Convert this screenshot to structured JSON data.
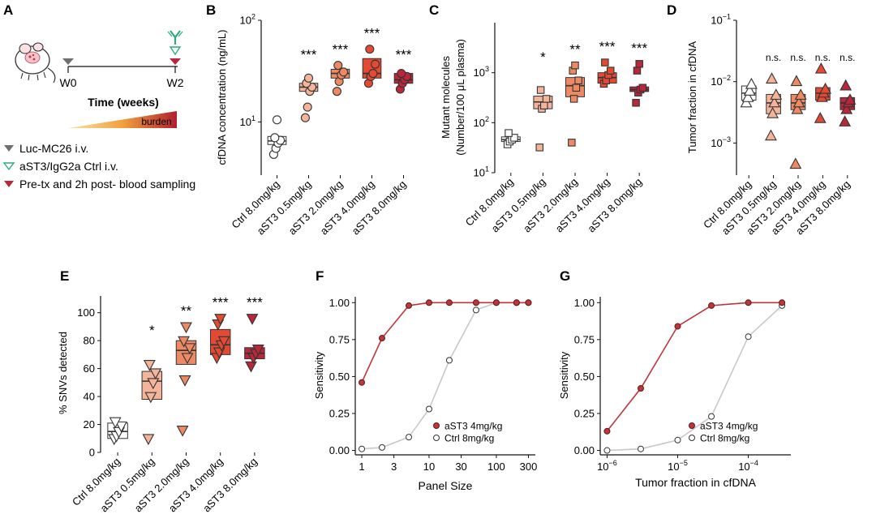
{
  "panel_labels": [
    "A",
    "B",
    "C",
    "D",
    "E",
    "F",
    "G"
  ],
  "palette": {
    "Ctrl 8.0mg/kg": "#ffffff",
    "aST3 0.5mg/kg": "#f4b49a",
    "aST3 2.0mg/kg": "#ee8a63",
    "aST3 4.0mg/kg": "#e24a33",
    "aST3 8.0mg/kg": "#b8273a",
    "aST3 4mg/kg": "#c0353a",
    "Ctrl 8mg/kg": "#c8c8c8"
  },
  "schematic": {
    "w0": "W0",
    "w2": "W2",
    "time_label": "Time (weeks)",
    "burden": "burden",
    "legend": [
      {
        "symbol": "gray-filled-triangle-down",
        "text": "Luc-MC26 i.v."
      },
      {
        "symbol": "green-open-triangle-down",
        "text": "aST3/IgG2a Ctrl i.v."
      },
      {
        "symbol": "red-filled-triangle-down",
        "text": "Pre-tx and 2h post- blood sampling"
      }
    ]
  },
  "chart_data": [
    {
      "panel": "B",
      "type": "box",
      "ylabel": "cfDNA concentration (ng/mL)",
      "yscale": "log",
      "ylim": [
        3,
        100
      ],
      "yticks": [
        10,
        100
      ],
      "ytick_labels": [
        "10^1",
        "10^2"
      ],
      "categories": [
        "Ctrl 8.0mg/kg",
        "aST3 0.5mg/kg",
        "aST3 2.0mg/kg",
        "aST3 4.0mg/kg",
        "aST3 8.0mg/kg"
      ],
      "marker": "circle",
      "significance": [
        "",
        "***",
        "***",
        "***",
        "***"
      ],
      "boxes": [
        [
          6.0,
          6.5,
          7.2
        ],
        [
          20,
          22,
          24
        ],
        [
          27,
          30,
          33
        ],
        [
          27,
          30,
          42
        ],
        [
          24,
          26,
          30
        ]
      ],
      "points": [
        [
          4.8,
          5.5,
          6.2,
          6.6,
          7.0,
          10.5
        ],
        [
          11,
          14,
          20,
          22,
          24,
          27
        ],
        [
          20,
          25,
          29,
          31,
          36
        ],
        [
          24,
          28,
          30,
          37,
          52
        ],
        [
          21,
          24,
          26,
          28,
          30
        ]
      ]
    },
    {
      "panel": "C",
      "type": "box",
      "ylabel": "Mutant molecules (Number/100 μL plasma)",
      "yscale": "log",
      "ylim": [
        10,
        10000
      ],
      "yticks": [
        10,
        100,
        1000
      ],
      "ytick_labels": [
        "10^1",
        "10^2",
        "10^3"
      ],
      "categories": [
        "Ctrl 8.0mg/kg",
        "aST3 0.5mg/kg",
        "aST3 2.0mg/kg",
        "aST3 4.0mg/kg",
        "aST3 8.0mg/kg"
      ],
      "marker": "square",
      "significance": [
        "",
        "*",
        "**",
        "***",
        "***"
      ],
      "boxes": [
        [
          42,
          46,
          52
        ],
        [
          190,
          260,
          340
        ],
        [
          330,
          550,
          800
        ],
        [
          620,
          800,
          1000
        ],
        [
          420,
          460,
          520
        ]
      ],
      "points": [
        [
          37,
          42,
          46,
          50,
          62
        ],
        [
          32,
          190,
          220,
          300,
          450
        ],
        [
          40,
          300,
          500,
          700,
          1100,
          1400
        ],
        [
          600,
          700,
          900,
          1100,
          1600
        ],
        [
          250,
          400,
          460,
          500,
          1100,
          1500
        ]
      ]
    },
    {
      "panel": "D",
      "type": "box",
      "ylabel": "Tumor fraction in cfDNA",
      "yscale": "log",
      "ylim": [
        0.0003,
        0.1
      ],
      "yticks": [
        0.001,
        0.01,
        0.1
      ],
      "ytick_labels": [
        "10^-3",
        "10^-2",
        "10^-1"
      ],
      "categories": [
        "Ctrl 8.0mg/kg",
        "aST3 0.5mg/kg",
        "aST3 2.0mg/kg",
        "aST3 4.0mg/kg",
        "aST3 8.0mg/kg"
      ],
      "marker": "triangle-up",
      "significance": [
        "",
        "n.s.",
        "n.s.",
        "n.s.",
        "n.s."
      ],
      "boxes": [
        [
          0.005,
          0.0065,
          0.0085
        ],
        [
          0.003,
          0.0045,
          0.0062
        ],
        [
          0.0035,
          0.0045,
          0.0062
        ],
        [
          0.005,
          0.0065,
          0.008
        ],
        [
          0.0035,
          0.0045,
          0.0055
        ]
      ],
      "points": [
        [
          0.0045,
          0.0055,
          0.007,
          0.009
        ],
        [
          0.0013,
          0.003,
          0.0045,
          0.006,
          0.011
        ],
        [
          0.00045,
          0.0035,
          0.0045,
          0.006,
          0.01
        ],
        [
          0.0025,
          0.0055,
          0.0065,
          0.0075,
          0.016
        ],
        [
          0.0022,
          0.0035,
          0.0045,
          0.005,
          0.0085
        ]
      ]
    },
    {
      "panel": "E",
      "type": "box",
      "ylabel": "% SNVs detected",
      "yscale": "linear",
      "ylim": [
        0,
        112
      ],
      "yticks": [
        0,
        20,
        40,
        60,
        80,
        100
      ],
      "ytick_labels": [
        "0",
        "20",
        "40",
        "60",
        "80",
        "100"
      ],
      "categories": [
        "Ctrl 8.0mg/kg",
        "aST3 0.5mg/kg",
        "aST3 2.0mg/kg",
        "aST3 4.0mg/kg",
        "aST3 8.0mg/kg"
      ],
      "marker": "triangle-down",
      "significance": [
        "",
        "*",
        "**",
        "***",
        "***"
      ],
      "boxes": [
        [
          10,
          15,
          21
        ],
        [
          38,
          51,
          58
        ],
        [
          63,
          73,
          80
        ],
        [
          70,
          77,
          88
        ],
        [
          67,
          71,
          75
        ]
      ],
      "points": [
        [
          10,
          12,
          15,
          19,
          22
        ],
        [
          10,
          40,
          50,
          57,
          63
        ],
        [
          16,
          52,
          68,
          75,
          80,
          90
        ],
        [
          68,
          72,
          77,
          80,
          92,
          96
        ],
        [
          62,
          68,
          71,
          74,
          96
        ]
      ]
    },
    {
      "panel": "F",
      "type": "line",
      "xlabel": "Panel Size",
      "ylabel": "Sensitivity",
      "xscale": "log",
      "xlim": [
        0.8,
        380
      ],
      "ylim": [
        -0.03,
        1.04
      ],
      "xticks": [
        1,
        3,
        10,
        30,
        100,
        300
      ],
      "xtick_labels": [
        "1",
        "3",
        "10",
        "30",
        "100",
        "300"
      ],
      "yticks": [
        0,
        0.25,
        0.5,
        0.75,
        1
      ],
      "ytick_labels": [
        "0.00",
        "0.25",
        "0.50",
        "0.75",
        "1.00"
      ],
      "legend_position": "bottom-right",
      "series": [
        {
          "name": "aST3 4mg/kg",
          "x": [
            1,
            2,
            5,
            10,
            20,
            50,
            100,
            200,
            300
          ],
          "y": [
            0.46,
            0.76,
            0.98,
            1.0,
            1.0,
            1.0,
            1.0,
            1.0,
            1.0
          ]
        },
        {
          "name": "Ctrl 8mg/kg",
          "x": [
            1,
            2,
            5,
            10,
            20,
            50,
            100,
            200,
            300
          ],
          "y": [
            0.01,
            0.02,
            0.09,
            0.28,
            0.61,
            0.95,
            1.0,
            1.0,
            1.0
          ]
        }
      ]
    },
    {
      "panel": "G",
      "type": "line",
      "xlabel": "Tumor fraction in cfDNA",
      "ylabel": "Sensitivity",
      "xscale": "log",
      "xlim": [
        8e-07,
        0.0004
      ],
      "ylim": [
        -0.03,
        1.04
      ],
      "xticks": [
        1e-06,
        1e-05,
        0.0001
      ],
      "xtick_labels": [
        "10^-6",
        "10^-5",
        "10^-4"
      ],
      "yticks": [
        0,
        0.25,
        0.5,
        0.75,
        1
      ],
      "ytick_labels": [
        "0.00",
        "0.25",
        "0.50",
        "0.75",
        "1.00"
      ],
      "legend_position": "bottom-right",
      "series": [
        {
          "name": "aST3 4mg/kg",
          "x": [
            1e-06,
            3e-06,
            1e-05,
            3e-05,
            0.0001,
            0.0003
          ],
          "y": [
            0.13,
            0.42,
            0.84,
            0.98,
            1.0,
            1.0
          ]
        },
        {
          "name": "Ctrl 8mg/kg",
          "x": [
            1e-06,
            3e-06,
            1e-05,
            3e-05,
            0.0001,
            0.0003
          ],
          "y": [
            0.0,
            0.01,
            0.07,
            0.23,
            0.77,
            0.98
          ]
        }
      ]
    }
  ]
}
